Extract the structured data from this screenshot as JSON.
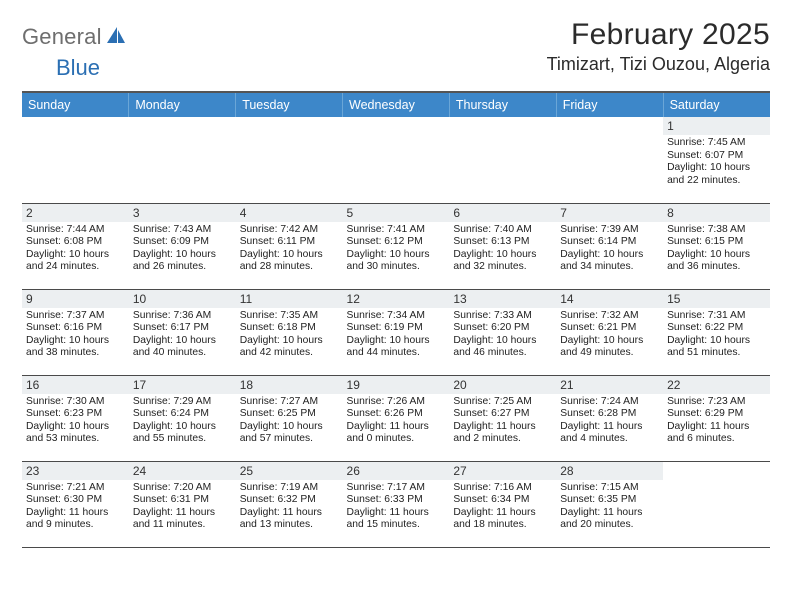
{
  "logo": {
    "general": "General",
    "blue": "Blue"
  },
  "title": "February 2025",
  "location": "Timizart, Tizi Ouzou, Algeria",
  "colors": {
    "header_bg": "#3d87c9",
    "daynum_bg": "#eceff1",
    "rule": "#555555",
    "logo_gray": "#6e6e6e",
    "logo_blue": "#2b6fb3"
  },
  "day_names": [
    "Sunday",
    "Monday",
    "Tuesday",
    "Wednesday",
    "Thursday",
    "Friday",
    "Saturday"
  ],
  "weeks": [
    [
      {
        "n": "",
        "sr": "",
        "ss": "",
        "dl": ""
      },
      {
        "n": "",
        "sr": "",
        "ss": "",
        "dl": ""
      },
      {
        "n": "",
        "sr": "",
        "ss": "",
        "dl": ""
      },
      {
        "n": "",
        "sr": "",
        "ss": "",
        "dl": ""
      },
      {
        "n": "",
        "sr": "",
        "ss": "",
        "dl": ""
      },
      {
        "n": "",
        "sr": "",
        "ss": "",
        "dl": ""
      },
      {
        "n": "1",
        "sr": "Sunrise: 7:45 AM",
        "ss": "Sunset: 6:07 PM",
        "dl": "Daylight: 10 hours and 22 minutes."
      }
    ],
    [
      {
        "n": "2",
        "sr": "Sunrise: 7:44 AM",
        "ss": "Sunset: 6:08 PM",
        "dl": "Daylight: 10 hours and 24 minutes."
      },
      {
        "n": "3",
        "sr": "Sunrise: 7:43 AM",
        "ss": "Sunset: 6:09 PM",
        "dl": "Daylight: 10 hours and 26 minutes."
      },
      {
        "n": "4",
        "sr": "Sunrise: 7:42 AM",
        "ss": "Sunset: 6:11 PM",
        "dl": "Daylight: 10 hours and 28 minutes."
      },
      {
        "n": "5",
        "sr": "Sunrise: 7:41 AM",
        "ss": "Sunset: 6:12 PM",
        "dl": "Daylight: 10 hours and 30 minutes."
      },
      {
        "n": "6",
        "sr": "Sunrise: 7:40 AM",
        "ss": "Sunset: 6:13 PM",
        "dl": "Daylight: 10 hours and 32 minutes."
      },
      {
        "n": "7",
        "sr": "Sunrise: 7:39 AM",
        "ss": "Sunset: 6:14 PM",
        "dl": "Daylight: 10 hours and 34 minutes."
      },
      {
        "n": "8",
        "sr": "Sunrise: 7:38 AM",
        "ss": "Sunset: 6:15 PM",
        "dl": "Daylight: 10 hours and 36 minutes."
      }
    ],
    [
      {
        "n": "9",
        "sr": "Sunrise: 7:37 AM",
        "ss": "Sunset: 6:16 PM",
        "dl": "Daylight: 10 hours and 38 minutes."
      },
      {
        "n": "10",
        "sr": "Sunrise: 7:36 AM",
        "ss": "Sunset: 6:17 PM",
        "dl": "Daylight: 10 hours and 40 minutes."
      },
      {
        "n": "11",
        "sr": "Sunrise: 7:35 AM",
        "ss": "Sunset: 6:18 PM",
        "dl": "Daylight: 10 hours and 42 minutes."
      },
      {
        "n": "12",
        "sr": "Sunrise: 7:34 AM",
        "ss": "Sunset: 6:19 PM",
        "dl": "Daylight: 10 hours and 44 minutes."
      },
      {
        "n": "13",
        "sr": "Sunrise: 7:33 AM",
        "ss": "Sunset: 6:20 PM",
        "dl": "Daylight: 10 hours and 46 minutes."
      },
      {
        "n": "14",
        "sr": "Sunrise: 7:32 AM",
        "ss": "Sunset: 6:21 PM",
        "dl": "Daylight: 10 hours and 49 minutes."
      },
      {
        "n": "15",
        "sr": "Sunrise: 7:31 AM",
        "ss": "Sunset: 6:22 PM",
        "dl": "Daylight: 10 hours and 51 minutes."
      }
    ],
    [
      {
        "n": "16",
        "sr": "Sunrise: 7:30 AM",
        "ss": "Sunset: 6:23 PM",
        "dl": "Daylight: 10 hours and 53 minutes."
      },
      {
        "n": "17",
        "sr": "Sunrise: 7:29 AM",
        "ss": "Sunset: 6:24 PM",
        "dl": "Daylight: 10 hours and 55 minutes."
      },
      {
        "n": "18",
        "sr": "Sunrise: 7:27 AM",
        "ss": "Sunset: 6:25 PM",
        "dl": "Daylight: 10 hours and 57 minutes."
      },
      {
        "n": "19",
        "sr": "Sunrise: 7:26 AM",
        "ss": "Sunset: 6:26 PM",
        "dl": "Daylight: 11 hours and 0 minutes."
      },
      {
        "n": "20",
        "sr": "Sunrise: 7:25 AM",
        "ss": "Sunset: 6:27 PM",
        "dl": "Daylight: 11 hours and 2 minutes."
      },
      {
        "n": "21",
        "sr": "Sunrise: 7:24 AM",
        "ss": "Sunset: 6:28 PM",
        "dl": "Daylight: 11 hours and 4 minutes."
      },
      {
        "n": "22",
        "sr": "Sunrise: 7:23 AM",
        "ss": "Sunset: 6:29 PM",
        "dl": "Daylight: 11 hours and 6 minutes."
      }
    ],
    [
      {
        "n": "23",
        "sr": "Sunrise: 7:21 AM",
        "ss": "Sunset: 6:30 PM",
        "dl": "Daylight: 11 hours and 9 minutes."
      },
      {
        "n": "24",
        "sr": "Sunrise: 7:20 AM",
        "ss": "Sunset: 6:31 PM",
        "dl": "Daylight: 11 hours and 11 minutes."
      },
      {
        "n": "25",
        "sr": "Sunrise: 7:19 AM",
        "ss": "Sunset: 6:32 PM",
        "dl": "Daylight: 11 hours and 13 minutes."
      },
      {
        "n": "26",
        "sr": "Sunrise: 7:17 AM",
        "ss": "Sunset: 6:33 PM",
        "dl": "Daylight: 11 hours and 15 minutes."
      },
      {
        "n": "27",
        "sr": "Sunrise: 7:16 AM",
        "ss": "Sunset: 6:34 PM",
        "dl": "Daylight: 11 hours and 18 minutes."
      },
      {
        "n": "28",
        "sr": "Sunrise: 7:15 AM",
        "ss": "Sunset: 6:35 PM",
        "dl": "Daylight: 11 hours and 20 minutes."
      },
      {
        "n": "",
        "sr": "",
        "ss": "",
        "dl": ""
      }
    ]
  ]
}
